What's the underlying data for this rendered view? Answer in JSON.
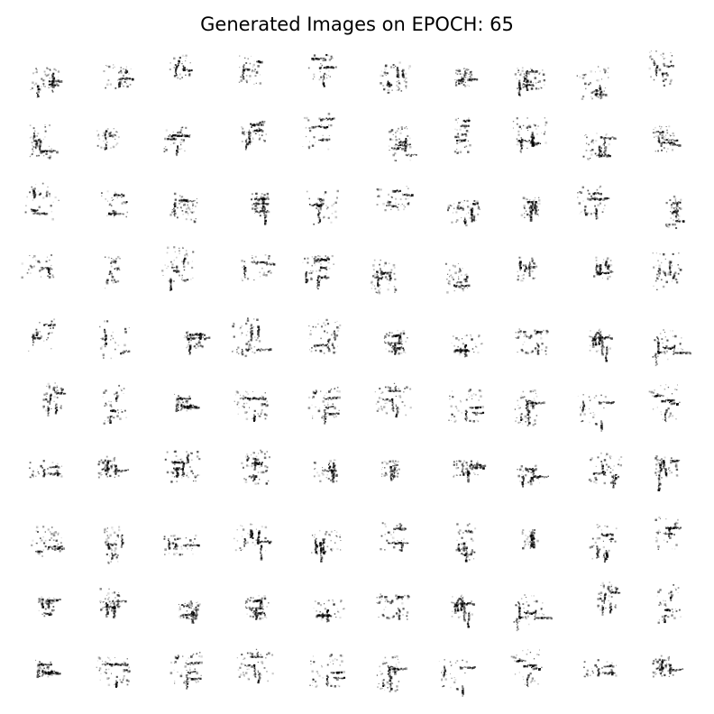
{
  "figure": {
    "title": "Generated Images on EPOCH: 65",
    "grid": {
      "rows": 10,
      "cols": 10
    },
    "ink_color": "#000000",
    "background_color": "#ffffff",
    "image_content": "glyph-like generated character images"
  }
}
